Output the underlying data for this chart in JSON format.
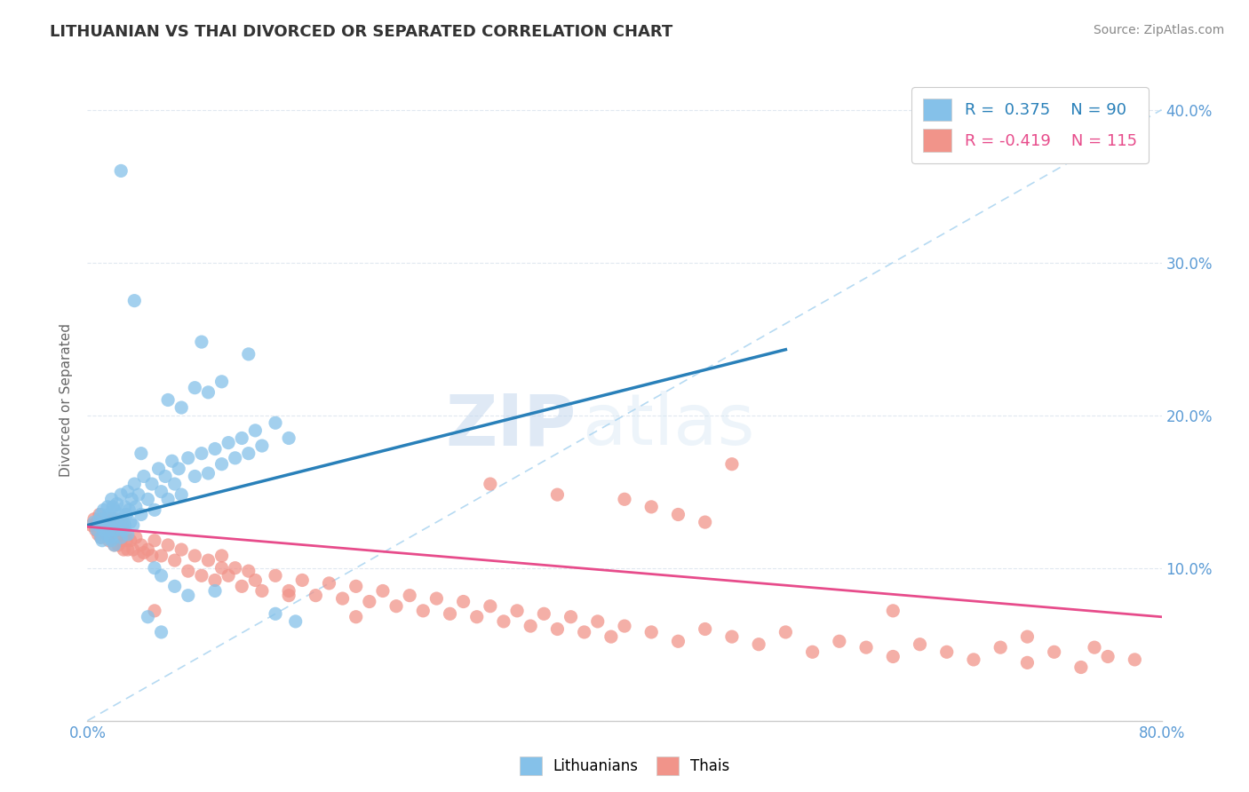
{
  "title": "LITHUANIAN VS THAI DIVORCED OR SEPARATED CORRELATION CHART",
  "source": "Source: ZipAtlas.com",
  "ylabel": "Divorced or Separated",
  "xlim": [
    0.0,
    0.8
  ],
  "ylim": [
    0.0,
    0.42
  ],
  "legend_R1": "R =  0.375",
  "legend_N1": "N = 90",
  "legend_R2": "R = -0.419",
  "legend_N2": "N = 115",
  "color_blue": "#85c1e9",
  "color_pink": "#f1948a",
  "color_blue_line": "#2980b9",
  "color_pink_line": "#e74c8b",
  "color_diag": "#aed6f1",
  "watermark_zip": "ZIP",
  "watermark_atlas": "atlas",
  "blue_x": [
    0.005,
    0.007,
    0.008,
    0.009,
    0.01,
    0.01,
    0.011,
    0.012,
    0.012,
    0.013,
    0.014,
    0.015,
    0.015,
    0.016,
    0.016,
    0.017,
    0.017,
    0.018,
    0.018,
    0.019,
    0.019,
    0.02,
    0.02,
    0.021,
    0.022,
    0.022,
    0.023,
    0.024,
    0.025,
    0.025,
    0.026,
    0.027,
    0.028,
    0.028,
    0.029,
    0.03,
    0.03,
    0.031,
    0.032,
    0.033,
    0.034,
    0.035,
    0.036,
    0.038,
    0.04,
    0.042,
    0.045,
    0.048,
    0.05,
    0.053,
    0.055,
    0.058,
    0.06,
    0.063,
    0.065,
    0.068,
    0.07,
    0.075,
    0.08,
    0.085,
    0.09,
    0.095,
    0.1,
    0.105,
    0.11,
    0.115,
    0.12,
    0.125,
    0.13,
    0.14,
    0.15,
    0.06,
    0.07,
    0.08,
    0.09,
    0.1,
    0.04,
    0.05,
    0.055,
    0.065,
    0.075,
    0.085,
    0.095,
    0.12,
    0.14,
    0.155,
    0.025,
    0.035,
    0.045,
    0.055
  ],
  "blue_y": [
    0.13,
    0.125,
    0.128,
    0.132,
    0.12,
    0.135,
    0.118,
    0.125,
    0.138,
    0.13,
    0.122,
    0.128,
    0.14,
    0.125,
    0.135,
    0.12,
    0.132,
    0.118,
    0.145,
    0.125,
    0.14,
    0.115,
    0.138,
    0.13,
    0.125,
    0.142,
    0.128,
    0.135,
    0.12,
    0.148,
    0.132,
    0.125,
    0.14,
    0.128,
    0.135,
    0.122,
    0.15,
    0.138,
    0.13,
    0.145,
    0.128,
    0.155,
    0.14,
    0.148,
    0.135,
    0.16,
    0.145,
    0.155,
    0.138,
    0.165,
    0.15,
    0.16,
    0.145,
    0.17,
    0.155,
    0.165,
    0.148,
    0.172,
    0.16,
    0.175,
    0.162,
    0.178,
    0.168,
    0.182,
    0.172,
    0.185,
    0.175,
    0.19,
    0.18,
    0.195,
    0.185,
    0.21,
    0.205,
    0.218,
    0.215,
    0.222,
    0.175,
    0.1,
    0.095,
    0.088,
    0.082,
    0.248,
    0.085,
    0.24,
    0.07,
    0.065,
    0.36,
    0.275,
    0.068,
    0.058
  ],
  "pink_x": [
    0.003,
    0.005,
    0.006,
    0.007,
    0.008,
    0.009,
    0.01,
    0.01,
    0.011,
    0.012,
    0.013,
    0.014,
    0.015,
    0.015,
    0.016,
    0.017,
    0.018,
    0.019,
    0.02,
    0.02,
    0.021,
    0.022,
    0.023,
    0.024,
    0.025,
    0.026,
    0.027,
    0.028,
    0.029,
    0.03,
    0.032,
    0.034,
    0.036,
    0.038,
    0.04,
    0.042,
    0.045,
    0.048,
    0.05,
    0.055,
    0.06,
    0.065,
    0.07,
    0.075,
    0.08,
    0.085,
    0.09,
    0.095,
    0.1,
    0.105,
    0.11,
    0.115,
    0.12,
    0.125,
    0.13,
    0.14,
    0.15,
    0.16,
    0.17,
    0.18,
    0.19,
    0.2,
    0.21,
    0.22,
    0.23,
    0.24,
    0.25,
    0.26,
    0.27,
    0.28,
    0.29,
    0.3,
    0.31,
    0.32,
    0.33,
    0.34,
    0.35,
    0.36,
    0.37,
    0.38,
    0.39,
    0.4,
    0.42,
    0.44,
    0.46,
    0.48,
    0.5,
    0.52,
    0.54,
    0.56,
    0.58,
    0.6,
    0.62,
    0.64,
    0.66,
    0.68,
    0.7,
    0.72,
    0.74,
    0.76,
    0.3,
    0.35,
    0.4,
    0.42,
    0.44,
    0.46,
    0.05,
    0.1,
    0.15,
    0.2,
    0.48,
    0.6,
    0.7,
    0.75,
    0.78
  ],
  "pink_y": [
    0.128,
    0.132,
    0.125,
    0.13,
    0.122,
    0.135,
    0.12,
    0.128,
    0.132,
    0.125,
    0.128,
    0.122,
    0.13,
    0.125,
    0.118,
    0.132,
    0.12,
    0.128,
    0.115,
    0.132,
    0.12,
    0.128,
    0.115,
    0.125,
    0.118,
    0.128,
    0.112,
    0.122,
    0.118,
    0.112,
    0.118,
    0.112,
    0.12,
    0.108,
    0.115,
    0.11,
    0.112,
    0.108,
    0.118,
    0.108,
    0.115,
    0.105,
    0.112,
    0.098,
    0.108,
    0.095,
    0.105,
    0.092,
    0.108,
    0.095,
    0.1,
    0.088,
    0.098,
    0.092,
    0.085,
    0.095,
    0.085,
    0.092,
    0.082,
    0.09,
    0.08,
    0.088,
    0.078,
    0.085,
    0.075,
    0.082,
    0.072,
    0.08,
    0.07,
    0.078,
    0.068,
    0.075,
    0.065,
    0.072,
    0.062,
    0.07,
    0.06,
    0.068,
    0.058,
    0.065,
    0.055,
    0.062,
    0.058,
    0.052,
    0.06,
    0.055,
    0.05,
    0.058,
    0.045,
    0.052,
    0.048,
    0.042,
    0.05,
    0.045,
    0.04,
    0.048,
    0.038,
    0.045,
    0.035,
    0.042,
    0.155,
    0.148,
    0.145,
    0.14,
    0.135,
    0.13,
    0.072,
    0.1,
    0.082,
    0.068,
    0.168,
    0.072,
    0.055,
    0.048,
    0.04
  ],
  "blue_line_x": [
    0.0,
    0.52
  ],
  "blue_line_y": [
    0.128,
    0.243
  ],
  "pink_line_x": [
    0.0,
    0.8
  ],
  "pink_line_y": [
    0.127,
    0.068
  ]
}
